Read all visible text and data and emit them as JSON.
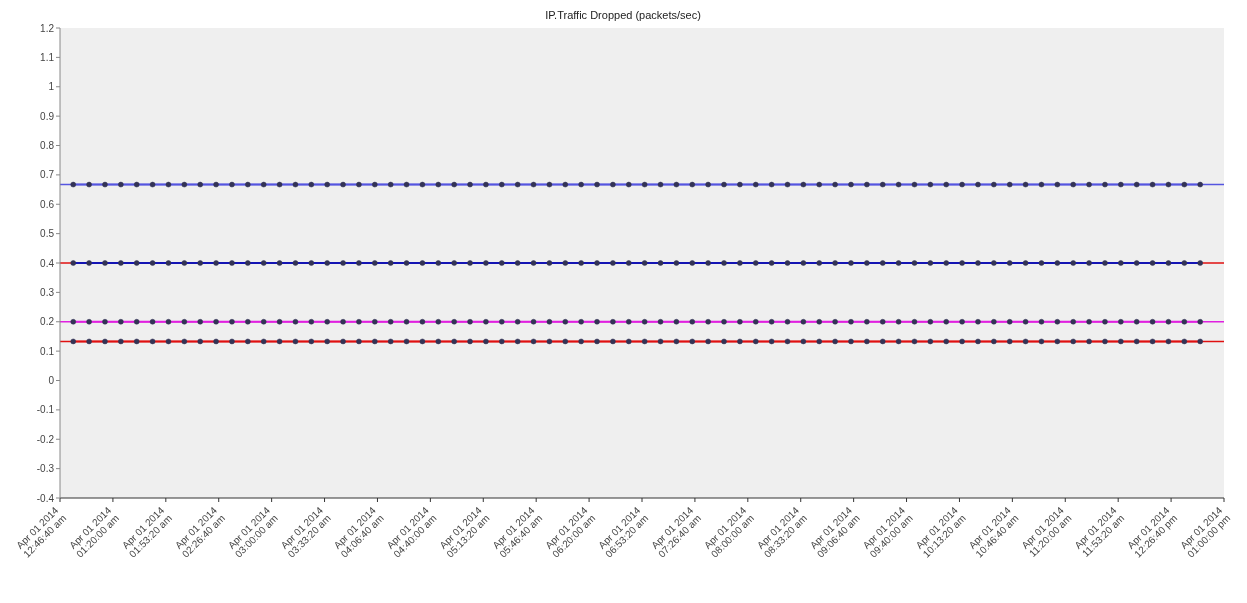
{
  "chart_data": {
    "type": "line",
    "title": "IP.Traffic Dropped (packets/sec)",
    "x": [
      "2014-04-01T00:55",
      "2014-04-01T01:05",
      "2014-04-01T01:15",
      "2014-04-01T01:25",
      "2014-04-01T01:35",
      "2014-04-01T01:45",
      "2014-04-01T01:55",
      "2014-04-01T02:05",
      "2014-04-01T02:15",
      "2014-04-01T02:25",
      "2014-04-01T02:35",
      "2014-04-01T02:45",
      "2014-04-01T02:55",
      "2014-04-01T03:05",
      "2014-04-01T03:15",
      "2014-04-01T03:25",
      "2014-04-01T03:35",
      "2014-04-01T03:45",
      "2014-04-01T03:55",
      "2014-04-01T04:05",
      "2014-04-01T04:15",
      "2014-04-01T04:25",
      "2014-04-01T04:35",
      "2014-04-01T04:45",
      "2014-04-01T04:55",
      "2014-04-01T05:05",
      "2014-04-01T05:15",
      "2014-04-01T05:25",
      "2014-04-01T05:35",
      "2014-04-01T05:45",
      "2014-04-01T05:55",
      "2014-04-01T06:05",
      "2014-04-01T06:15",
      "2014-04-01T06:25",
      "2014-04-01T06:35",
      "2014-04-01T06:45",
      "2014-04-01T06:55",
      "2014-04-01T07:05",
      "2014-04-01T07:15",
      "2014-04-01T07:25",
      "2014-04-01T07:35",
      "2014-04-01T07:45",
      "2014-04-01T07:55",
      "2014-04-01T08:05",
      "2014-04-01T08:15",
      "2014-04-01T08:25",
      "2014-04-01T08:35",
      "2014-04-01T08:45",
      "2014-04-01T08:55",
      "2014-04-01T09:05",
      "2014-04-01T09:15",
      "2014-04-01T09:25",
      "2014-04-01T09:35",
      "2014-04-01T09:45",
      "2014-04-01T09:55",
      "2014-04-01T10:05",
      "2014-04-01T10:15",
      "2014-04-01T10:25",
      "2014-04-01T10:35",
      "2014-04-01T10:45",
      "2014-04-01T10:55",
      "2014-04-01T11:05",
      "2014-04-01T11:15",
      "2014-04-01T11:25",
      "2014-04-01T11:35",
      "2014-04-01T11:45",
      "2014-04-01T11:55",
      "2014-04-01T12:05",
      "2014-04-01T12:15",
      "2014-04-01T12:25",
      "2014-04-01T12:35",
      "2014-04-01T12:45"
    ],
    "series": [
      {
        "color": "#5555e0",
        "values": [
          0.667,
          0.667,
          0.667,
          0.667,
          0.667,
          0.667,
          0.667,
          0.667,
          0.667,
          0.667,
          0.667,
          0.667,
          0.667,
          0.667,
          0.667,
          0.667,
          0.667,
          0.667,
          0.667,
          0.667,
          0.667,
          0.667,
          0.667,
          0.667,
          0.667,
          0.667,
          0.667,
          0.667,
          0.667,
          0.667,
          0.667,
          0.667,
          0.667,
          0.667,
          0.667,
          0.667,
          0.667,
          0.667,
          0.667,
          0.667,
          0.667,
          0.667,
          0.667,
          0.667,
          0.667,
          0.667,
          0.667,
          0.667,
          0.667,
          0.667,
          0.667,
          0.667,
          0.667,
          0.667,
          0.667,
          0.667,
          0.667,
          0.667,
          0.667,
          0.667,
          0.667,
          0.667,
          0.667,
          0.667,
          0.667,
          0.667,
          0.667,
          0.667,
          0.667,
          0.667,
          0.667,
          0.667
        ]
      },
      {
        "color": "#1414b4",
        "values": [
          0.4,
          0.4,
          0.4,
          0.4,
          0.4,
          0.4,
          0.4,
          0.4,
          0.4,
          0.4,
          0.4,
          0.4,
          0.4,
          0.4,
          0.4,
          0.4,
          0.4,
          0.4,
          0.4,
          0.4,
          0.4,
          0.4,
          0.4,
          0.4,
          0.4,
          0.4,
          0.4,
          0.4,
          0.4,
          0.4,
          0.4,
          0.4,
          0.4,
          0.4,
          0.4,
          0.4,
          0.4,
          0.4,
          0.4,
          0.4,
          0.4,
          0.4,
          0.4,
          0.4,
          0.4,
          0.4,
          0.4,
          0.4,
          0.4,
          0.4,
          0.4,
          0.4,
          0.4,
          0.4,
          0.4,
          0.4,
          0.4,
          0.4,
          0.4,
          0.4,
          0.4,
          0.4,
          0.4,
          0.4,
          0.4,
          0.4,
          0.4,
          0.4,
          0.4,
          0.4,
          0.4,
          0.4
        ]
      },
      {
        "color": "#e020e0",
        "values": [
          0.2,
          0.2,
          0.2,
          0.2,
          0.2,
          0.2,
          0.2,
          0.2,
          0.2,
          0.2,
          0.2,
          0.2,
          0.2,
          0.2,
          0.2,
          0.2,
          0.2,
          0.2,
          0.2,
          0.2,
          0.2,
          0.2,
          0.2,
          0.2,
          0.2,
          0.2,
          0.2,
          0.2,
          0.2,
          0.2,
          0.2,
          0.2,
          0.2,
          0.2,
          0.2,
          0.2,
          0.2,
          0.2,
          0.2,
          0.2,
          0.2,
          0.2,
          0.2,
          0.2,
          0.2,
          0.2,
          0.2,
          0.2,
          0.2,
          0.2,
          0.2,
          0.2,
          0.2,
          0.2,
          0.2,
          0.2,
          0.2,
          0.2,
          0.2,
          0.2,
          0.2,
          0.2,
          0.2,
          0.2,
          0.2,
          0.2,
          0.2,
          0.2,
          0.2,
          0.2,
          0.2,
          0.2
        ]
      },
      {
        "color": "#e01010",
        "values": [
          0.133,
          0.133,
          0.133,
          0.133,
          0.133,
          0.133,
          0.133,
          0.133,
          0.133,
          0.133,
          0.133,
          0.133,
          0.133,
          0.133,
          0.133,
          0.133,
          0.133,
          0.133,
          0.133,
          0.133,
          0.133,
          0.133,
          0.133,
          0.133,
          0.133,
          0.133,
          0.133,
          0.133,
          0.133,
          0.133,
          0.133,
          0.133,
          0.133,
          0.133,
          0.133,
          0.133,
          0.133,
          0.133,
          0.133,
          0.133,
          0.133,
          0.133,
          0.133,
          0.133,
          0.133,
          0.133,
          0.133,
          0.133,
          0.133,
          0.133,
          0.133,
          0.133,
          0.133,
          0.133,
          0.133,
          0.133,
          0.133,
          0.133,
          0.133,
          0.133,
          0.133,
          0.133,
          0.133,
          0.133,
          0.133,
          0.133,
          0.133,
          0.133,
          0.133,
          0.133,
          0.133,
          0.133
        ]
      }
    ],
    "ref_lines": [
      {
        "axis": "y",
        "value": 0.667,
        "color": "#5555e0"
      },
      {
        "axis": "y",
        "value": 0.4,
        "color": "#e01010"
      },
      {
        "axis": "y",
        "value": 0.2,
        "color": "#e020e0"
      },
      {
        "axis": "y",
        "value": 0.133,
        "color": "#e01010"
      }
    ],
    "marker": "circle",
    "ylim": [
      -0.4,
      1.2
    ],
    "yticks": [
      -0.4,
      -0.3,
      -0.2,
      -0.1,
      0,
      0.1,
      0.2,
      0.3,
      0.4,
      0.5,
      0.6,
      0.7,
      0.8,
      0.9,
      1,
      1.1,
      1.2
    ],
    "xlim": [
      "2014-04-01T00:46:40",
      "2014-04-01T13:00:00"
    ],
    "xticks": [
      {
        "value": "2014-04-01T00:46:40",
        "label": "Apr 01 2014\n12:46:40 am"
      },
      {
        "value": "2014-04-01T01:20:00",
        "label": "Apr 01 2014\n01:20:00 am"
      },
      {
        "value": "2014-04-01T01:53:20",
        "label": "Apr 01 2014\n01:53:20 am"
      },
      {
        "value": "2014-04-01T02:26:40",
        "label": "Apr 01 2014\n02:26:40 am"
      },
      {
        "value": "2014-04-01T03:00:00",
        "label": "Apr 01 2014\n03:00:00 am"
      },
      {
        "value": "2014-04-01T03:33:20",
        "label": "Apr 01 2014\n03:33:20 am"
      },
      {
        "value": "2014-04-01T04:06:40",
        "label": "Apr 01 2014\n04:06:40 am"
      },
      {
        "value": "2014-04-01T04:40:00",
        "label": "Apr 01 2014\n04:40:00 am"
      },
      {
        "value": "2014-04-01T05:13:20",
        "label": "Apr 01 2014\n05:13:20 am"
      },
      {
        "value": "2014-04-01T05:46:40",
        "label": "Apr 01 2014\n05:46:40 am"
      },
      {
        "value": "2014-04-01T06:20:00",
        "label": "Apr 01 2014\n06:20:00 am"
      },
      {
        "value": "2014-04-01T06:53:20",
        "label": "Apr 01 2014\n06:53:20 am"
      },
      {
        "value": "2014-04-01T07:26:40",
        "label": "Apr 01 2014\n07:26:40 am"
      },
      {
        "value": "2014-04-01T08:00:00",
        "label": "Apr 01 2014\n08:00:00 am"
      },
      {
        "value": "2014-04-01T08:33:20",
        "label": "Apr 01 2014\n08:33:20 am"
      },
      {
        "value": "2014-04-01T09:06:40",
        "label": "Apr 01 2014\n09:06:40 am"
      },
      {
        "value": "2014-04-01T09:40:00",
        "label": "Apr 01 2014\n09:40:00 am"
      },
      {
        "value": "2014-04-01T10:13:20",
        "label": "Apr 01 2014\n10:13:20 am"
      },
      {
        "value": "2014-04-01T10:46:40",
        "label": "Apr 01 2014\n10:46:40 am"
      },
      {
        "value": "2014-04-01T11:20:00",
        "label": "Apr 01 2014\n11:20:00 am"
      },
      {
        "value": "2014-04-01T11:53:20",
        "label": "Apr 01 2014\n11:53:20 am"
      },
      {
        "value": "2014-04-01T12:26:40",
        "label": "Apr 01 2014\n12:26:40 pm"
      },
      {
        "value": "2014-04-01T13:00:00",
        "label": "Apr 01 2014\n01:00:00 pm"
      }
    ]
  }
}
